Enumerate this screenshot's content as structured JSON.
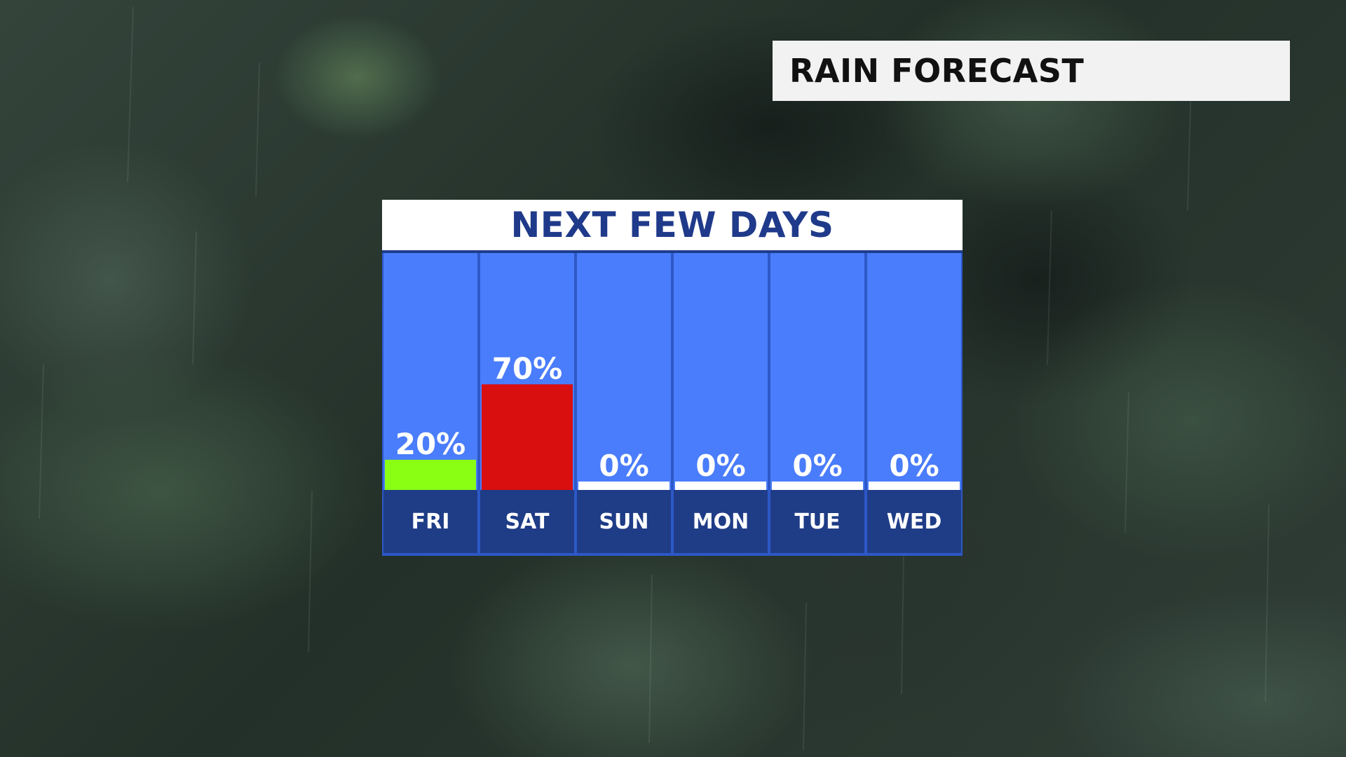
{
  "header": {
    "title": "RAIN FORECAST"
  },
  "panel": {
    "title": "NEXT FEW DAYS"
  },
  "colors": {
    "column_bg": "#4a7dfb",
    "label_bg": "#1f3c87",
    "border": "#2d58c7",
    "text": "#ffffff",
    "zero_bar": "#ffffff"
  },
  "chart_data": {
    "type": "bar",
    "title": "NEXT FEW DAYS",
    "categories": [
      "FRI",
      "SAT",
      "SUN",
      "MON",
      "TUE",
      "WED"
    ],
    "values": [
      20,
      70,
      0,
      0,
      0,
      0
    ],
    "value_labels": [
      "20%",
      "70%",
      "0%",
      "0%",
      "0%",
      "0%"
    ],
    "bar_colors": [
      "#8aff14",
      "#d90f0f",
      "#ffffff",
      "#ffffff",
      "#ffffff",
      "#ffffff"
    ],
    "ylim": [
      0,
      100
    ],
    "unit": "%",
    "xlabel": "",
    "ylabel": "",
    "grid": false
  }
}
